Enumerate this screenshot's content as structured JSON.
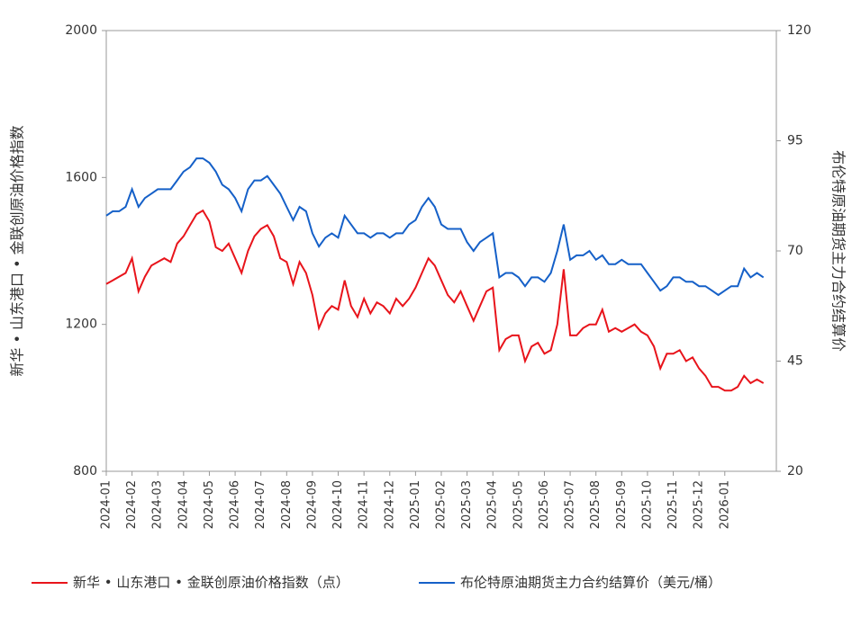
{
  "chart_data": {
    "type": "line",
    "categories": [
      "2024-01",
      null,
      null,
      null,
      "2024-02",
      null,
      null,
      null,
      "2024-03",
      null,
      null,
      null,
      "2024-04",
      null,
      null,
      null,
      "2024-05",
      null,
      null,
      null,
      "2024-06",
      null,
      null,
      null,
      "2024-07",
      null,
      null,
      null,
      "2024-08",
      null,
      null,
      null,
      "2024-09",
      null,
      null,
      null,
      "2024-10",
      null,
      null,
      null,
      "2024-11",
      null,
      null,
      null,
      "2024-12",
      null,
      null,
      null,
      "2025-01",
      null,
      null,
      null,
      "2025-02",
      null,
      null,
      null,
      "2025-03",
      null,
      null,
      null,
      "2025-04",
      null,
      null,
      null,
      "2025-05",
      null,
      null,
      null,
      "2025-06",
      null,
      null,
      null,
      "2025-07",
      null,
      null,
      null,
      "2025-08",
      null,
      null,
      null,
      "2025-09",
      null,
      null,
      null,
      "2025-10",
      null,
      null,
      null,
      "2025-11",
      null,
      null,
      null,
      "2025-12",
      null,
      null,
      null,
      "2026-01",
      null,
      null,
      null,
      null,
      null,
      null
    ],
    "series": [
      {
        "name": "新华 • 山东港口 • 金联创原油价格指数（点）",
        "color": "#e8141b",
        "values": [
          1310,
          1320,
          1330,
          1340,
          1380,
          1290,
          1330,
          1360,
          1370,
          1380,
          1370,
          1420,
          1440,
          1470,
          1500,
          1510,
          1480,
          1410,
          1400,
          1420,
          1380,
          1340,
          1400,
          1440,
          1460,
          1470,
          1440,
          1380,
          1370,
          1310,
          1370,
          1340,
          1280,
          1190,
          1230,
          1250,
          1240,
          1320,
          1250,
          1220,
          1270,
          1230,
          1260,
          1250,
          1230,
          1270,
          1250,
          1270,
          1300,
          1340,
          1380,
          1360,
          1320,
          1280,
          1260,
          1290,
          1250,
          1210,
          1250,
          1290,
          1300,
          1130,
          1160,
          1170,
          1170,
          1100,
          1140,
          1150,
          1120,
          1130,
          1200,
          1350,
          1170,
          1170,
          1190,
          1200,
          1200,
          1240,
          1180,
          1190,
          1180,
          1190,
          1200,
          1180,
          1170,
          1140,
          1080,
          1120,
          1120,
          1130,
          1100,
          1110,
          1080,
          1060,
          1030,
          1030,
          1020,
          1020,
          1030,
          1060,
          1040,
          1050,
          1040
        ]
      },
      {
        "name": "布伦特原油期货主力合约结算价（美元/桶）",
        "color": "#1560c8",
        "axis": "y2",
        "values": [
          78,
          79,
          79,
          80,
          84,
          80,
          82,
          83,
          84,
          84,
          84,
          86,
          88,
          89,
          91,
          91,
          90,
          88,
          85,
          84,
          82,
          79,
          84,
          86,
          86,
          87,
          85,
          83,
          80,
          77,
          80,
          79,
          74,
          71,
          73,
          74,
          73,
          78,
          76,
          74,
          74,
          73,
          74,
          74,
          73,
          74,
          74,
          76,
          77,
          80,
          82,
          80,
          76,
          75,
          75,
          75,
          72,
          70,
          72,
          73,
          74,
          64,
          65,
          65,
          64,
          62,
          64,
          64,
          63,
          65,
          70,
          76,
          68,
          69,
          69,
          70,
          68,
          69,
          67,
          67,
          68,
          67,
          67,
          67,
          65,
          63,
          61,
          62,
          64,
          64,
          63,
          63,
          62,
          62,
          61,
          60,
          61,
          62,
          62,
          66,
          64,
          65,
          64
        ]
      }
    ],
    "ylabel": "新华 • 山东港口 • 金联创原油价格指数",
    "y2label": "布伦特原油期货主力合约结算价",
    "ylim": [
      800,
      2000
    ],
    "yticks": [
      800,
      1200,
      1600,
      2000
    ],
    "y2lim": [
      20,
      120
    ],
    "y2ticks": [
      20,
      45,
      70,
      95,
      120
    ]
  }
}
